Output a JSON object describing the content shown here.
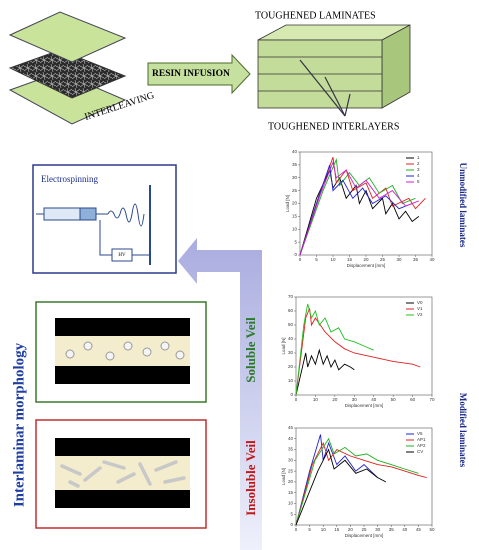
{
  "schematic": {
    "interleaving_label": "INTERLEAVING",
    "process_label": "RESIN INFUSION",
    "laminate_label": "TOUGHENED LAMINATES",
    "interlayer_label": "TOUGHENED INTERLAYERS"
  },
  "electrospinning": {
    "title": "Electrospinning",
    "power_label": "HV"
  },
  "morphology": {
    "title": "Interlaminar morphology",
    "soluble_label": "Soluble Veil",
    "insoluble_label": "Insoluble Veil"
  },
  "chart_labels": {
    "unmodified": "Unmodified laminates",
    "modified": "Modified laminates"
  },
  "chart_data": [
    {
      "type": "line",
      "x_label": "Displacement [mm]",
      "y_label": "Load [N]",
      "xlim": [
        0,
        40
      ],
      "ylim": [
        0,
        40
      ],
      "xticks": [
        0,
        5,
        10,
        15,
        20,
        25,
        30,
        35,
        40
      ],
      "yticks": [
        0,
        5,
        10,
        15,
        20,
        25,
        30,
        35,
        40
      ],
      "series": [
        {
          "name": "1",
          "color": "#000000",
          "x": [
            0,
            5,
            9,
            10,
            12,
            14,
            17,
            18,
            20,
            22,
            25,
            26,
            28,
            30,
            32,
            34,
            36
          ],
          "values": [
            0,
            22,
            33,
            26,
            30,
            22,
            27,
            20,
            25,
            18,
            22,
            16,
            20,
            14,
            17,
            13,
            15
          ]
        },
        {
          "name": "2",
          "color": "#e02020",
          "x": [
            0,
            6,
            10,
            11,
            14,
            16,
            20,
            22,
            26,
            28,
            33,
            35,
            38
          ],
          "values": [
            0,
            24,
            38,
            28,
            33,
            25,
            28,
            22,
            26,
            19,
            22,
            18,
            22
          ]
        },
        {
          "name": "3",
          "color": "#20b020",
          "x": [
            0,
            7,
            11,
            12,
            15,
            18,
            21,
            24,
            28,
            31,
            35
          ],
          "values": [
            0,
            25,
            37,
            27,
            32,
            27,
            30,
            24,
            27,
            20,
            22
          ]
        },
        {
          "name": "4",
          "color": "#2020d0",
          "x": [
            0,
            5,
            9,
            10,
            13,
            16,
            19,
            22,
            26,
            30,
            34
          ],
          "values": [
            0,
            20,
            35,
            25,
            29,
            22,
            26,
            20,
            23,
            18,
            20
          ]
        },
        {
          "name": "5",
          "color": "#d020d0",
          "x": [
            0,
            6,
            10,
            11,
            14,
            17,
            20,
            24,
            28,
            32,
            36
          ],
          "values": [
            0,
            23,
            36,
            30,
            33,
            26,
            29,
            22,
            25,
            19,
            21
          ]
        }
      ]
    },
    {
      "type": "line",
      "x_label": "Displacement [mm]",
      "y_label": "Load [N]",
      "xlim": [
        0,
        70
      ],
      "ylim": [
        0,
        70
      ],
      "xticks": [
        0,
        10,
        20,
        30,
        40,
        50,
        60,
        70
      ],
      "yticks": [
        0,
        10,
        20,
        30,
        40,
        50,
        60,
        70
      ],
      "series": [
        {
          "name": "V0",
          "color": "#000000",
          "x": [
            0,
            5,
            6,
            8,
            10,
            12,
            14,
            16,
            18,
            20,
            22,
            25,
            28,
            30
          ],
          "values": [
            0,
            30,
            20,
            28,
            22,
            32,
            22,
            28,
            20,
            25,
            18,
            22,
            20,
            18
          ]
        },
        {
          "name": "V1",
          "color": "#e02020",
          "x": [
            0,
            5,
            7,
            8,
            10,
            15,
            20,
            25,
            30,
            40,
            50,
            60,
            64
          ],
          "values": [
            0,
            55,
            62,
            50,
            55,
            45,
            38,
            33,
            30,
            27,
            24,
            22,
            20
          ]
        },
        {
          "name": "V2",
          "color": "#20c020",
          "x": [
            0,
            4,
            6,
            8,
            10,
            12,
            15,
            18,
            22,
            25,
            30,
            35,
            40
          ],
          "values": [
            0,
            50,
            65,
            55,
            60,
            50,
            55,
            45,
            48,
            40,
            38,
            35,
            32
          ]
        }
      ]
    },
    {
      "type": "line",
      "x_label": "Displacement [mm]",
      "y_label": "Load [N]",
      "xlim": [
        0,
        50
      ],
      "ylim": [
        0,
        45
      ],
      "xticks": [
        0,
        5,
        10,
        15,
        20,
        25,
        30,
        35,
        40,
        45,
        50
      ],
      "yticks": [
        0,
        5,
        10,
        15,
        20,
        25,
        30,
        35,
        40,
        45
      ],
      "series": [
        {
          "name": "V5",
          "color": "#2020d0",
          "x": [
            0,
            5,
            9,
            10,
            12,
            15,
            18,
            22,
            25,
            30
          ],
          "values": [
            0,
            25,
            42,
            30,
            38,
            28,
            32,
            25,
            28,
            22
          ]
        },
        {
          "name": "AP1",
          "color": "#e02020",
          "x": [
            0,
            6,
            10,
            12,
            15,
            20,
            25,
            30,
            35,
            40,
            45,
            48
          ],
          "values": [
            0,
            28,
            38,
            30,
            35,
            32,
            30,
            28,
            27,
            25,
            23,
            22
          ]
        },
        {
          "name": "AP2",
          "color": "#20b020",
          "x": [
            0,
            7,
            12,
            14,
            18,
            22,
            26,
            30,
            35,
            40,
            45
          ],
          "values": [
            0,
            30,
            40,
            33,
            36,
            32,
            33,
            30,
            28,
            26,
            24
          ]
        },
        {
          "name": "CV",
          "color": "#000000",
          "x": [
            0,
            8,
            12,
            14,
            18,
            22,
            26,
            30,
            33
          ],
          "values": [
            0,
            25,
            35,
            26,
            30,
            24,
            26,
            22,
            20
          ]
        }
      ]
    }
  ]
}
